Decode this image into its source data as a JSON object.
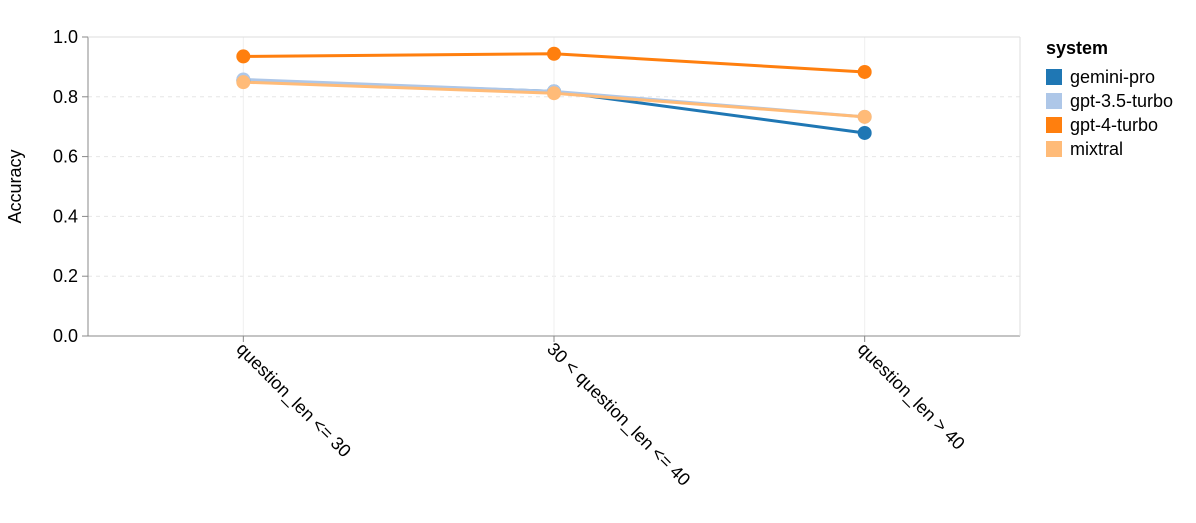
{
  "chart_data": {
    "type": "line",
    "ylabel": "Accuracy",
    "xlabel": "",
    "ylim": [
      0,
      1
    ],
    "yticks": [
      "0.0",
      "0.2",
      "0.4",
      "0.6",
      "0.8",
      "1.0"
    ],
    "grid": true,
    "legend_title": "system",
    "legend_position": "right",
    "categories": [
      "question_len <= 30",
      "30 < question_len <= 40",
      "question_len > 40"
    ],
    "series": [
      {
        "name": "gemini-pro",
        "color": "#1f77b4",
        "values": [
          0.855,
          0.818,
          0.679
        ]
      },
      {
        "name": "gpt-3.5-turbo",
        "color": "#aec7e8",
        "values": [
          0.858,
          0.818,
          0.733
        ]
      },
      {
        "name": "gpt-4-turbo",
        "color": "#ff7f0e",
        "values": [
          0.935,
          0.944,
          0.883
        ]
      },
      {
        "name": "mixtral",
        "color": "#ffbb78",
        "values": [
          0.849,
          0.812,
          0.733
        ]
      }
    ]
  }
}
